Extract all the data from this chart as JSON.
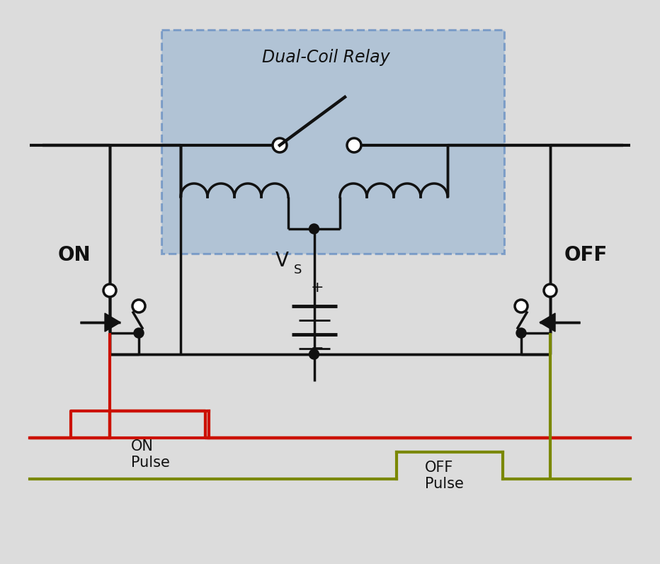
{
  "bg_color": "#dcdcdc",
  "relay_box_color": "#8fafd0",
  "line_color": "#111111",
  "red_color": "#cc1100",
  "olive_color": "#7a8800",
  "text_color": "#111111",
  "label_ON": "ON",
  "label_OFF": "OFF",
  "label_relay": "Dual-Coil Relay",
  "label_vs": "V",
  "label_vs_sub": "S",
  "label_on_pulse": "ON\nPulse",
  "label_off_pulse": "OFF\nPulse"
}
